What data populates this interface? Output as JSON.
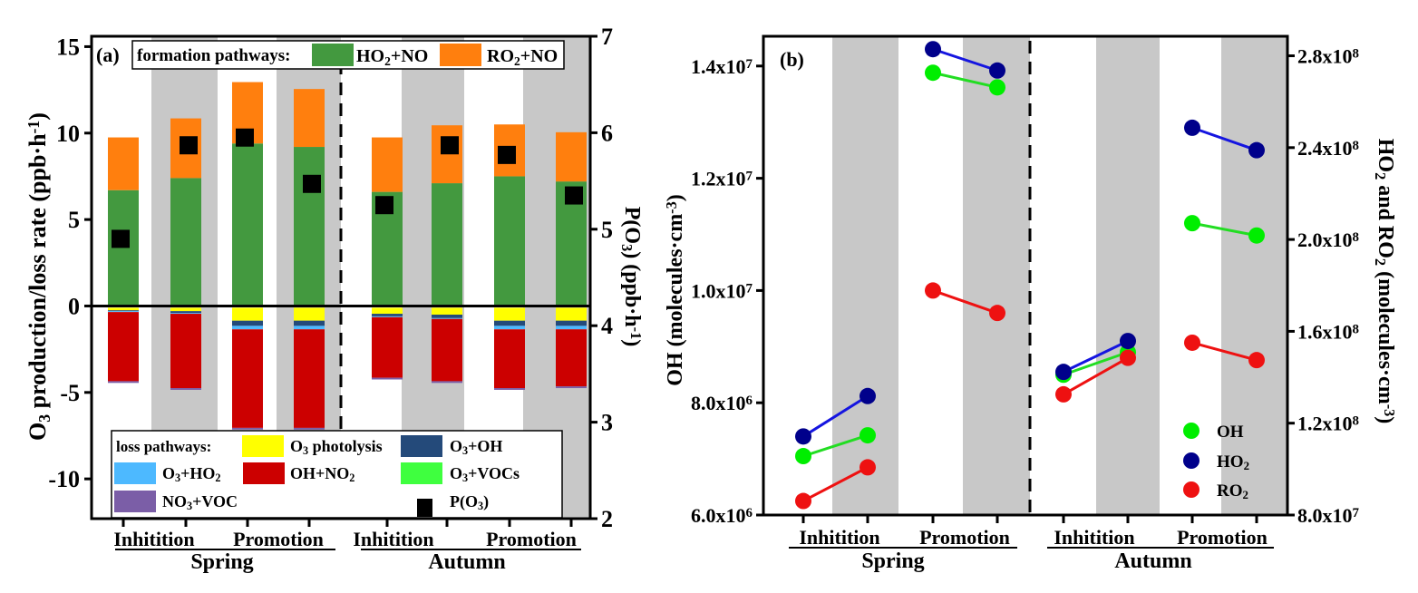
{
  "chart_data": [
    {
      "panel": "(a)",
      "type": "bar",
      "stacked": true,
      "ylabel": "O3 production/loss rate (ppb·h-1)",
      "ylabel_parts": {
        "main": "O",
        "sub": "3",
        "rest": " production/loss rate (ppb·h",
        "sup": "-1",
        "end": ")"
      },
      "y2label_parts": {
        "main": "P(O",
        "sub": "3",
        "rest": ") (ppb·h",
        "sup": "-1",
        "end": ")"
      },
      "ylim": [
        -12.3,
        15.6
      ],
      "yticks": [
        15,
        10,
        5,
        0,
        -5,
        -10
      ],
      "y2lim": [
        2,
        7
      ],
      "y2ticks": [
        7,
        6,
        5,
        4,
        3,
        2
      ],
      "categories": [
        "Spring Inhitition day",
        "Spring Inhitition night",
        "Spring Promotion day",
        "Spring Promotion night",
        "Autumn Inhitition day",
        "Autumn Inhitition night",
        "Autumn Promotion day",
        "Autumn Promotion night"
      ],
      "shaded": [
        false,
        true,
        false,
        true,
        false,
        true,
        false,
        true
      ],
      "group_labels": [
        {
          "label": "Inhitition",
          "season": "Spring"
        },
        {
          "label": "Promotion",
          "season": "Spring"
        },
        {
          "label": "Inhitition",
          "season": "Autumn"
        },
        {
          "label": "Promotion",
          "season": "Autumn"
        }
      ],
      "season_labels": [
        "Spring",
        "Autumn"
      ],
      "formation_legend_title": "formation pathways:",
      "loss_legend_title": "loss pathways:",
      "formation_series": [
        {
          "name": "HO2+NO",
          "label_main": "HO",
          "label_sub": "2",
          "label_rest": "+NO",
          "color": "#43993F",
          "values": [
            6.7,
            7.4,
            9.4,
            9.2,
            6.6,
            7.1,
            7.5,
            7.2
          ]
        },
        {
          "name": "RO2+NO",
          "label_main": "RO",
          "label_sub": "2",
          "label_rest": "+NO",
          "color": "#FF7F0E",
          "values": [
            3.05,
            3.45,
            3.55,
            3.35,
            3.15,
            3.35,
            3.0,
            2.85
          ]
        }
      ],
      "loss_series": [
        {
          "name": "O3 photolysis",
          "label_main": "O",
          "label_sub": "3",
          "label_rest": " photolysis",
          "color": "#FFFF00",
          "values": [
            -0.15,
            -0.2,
            -0.75,
            -0.75,
            -0.35,
            -0.4,
            -0.75,
            -0.75
          ]
        },
        {
          "name": "O3+OH",
          "label_main": "O",
          "label_sub": "3",
          "label_rest": "+OH",
          "color": "#244A7A",
          "values": [
            -0.05,
            -0.1,
            -0.3,
            -0.3,
            -0.15,
            -0.2,
            -0.3,
            -0.3
          ]
        },
        {
          "name": "O3+HO2",
          "label_main": "O",
          "label_sub": "3",
          "label_rest": "+HO",
          "label_sub2": "2",
          "color": "#4DB9FF",
          "values": [
            -0.05,
            -0.05,
            -0.2,
            -0.2,
            -0.05,
            -0.05,
            -0.2,
            -0.2
          ]
        },
        {
          "name": "OH+NO2",
          "label_main": "OH+NO",
          "label_sub": "2",
          "label_rest": "",
          "color": "#CC0000",
          "values": [
            -4.0,
            -4.3,
            -5.7,
            -5.7,
            -3.5,
            -3.6,
            -3.4,
            -3.3
          ]
        },
        {
          "name": "O3+VOCs",
          "label_main": "O",
          "label_sub": "3",
          "label_rest": "+VOCs",
          "color": "#3FFF3F",
          "values": [
            0,
            0,
            0,
            0,
            0,
            0,
            0,
            0
          ]
        },
        {
          "name": "NO3+VOC",
          "label_main": "NO",
          "label_sub": "3",
          "label_rest": "+VOC",
          "color": "#7B5EA7",
          "values": [
            -0.1,
            -0.1,
            -0.1,
            -0.1,
            -0.1,
            -0.1,
            -0.1,
            -0.1
          ]
        }
      ],
      "p_o3": {
        "name": "P(O3)",
        "label_main": "P(O",
        "label_sub": "3",
        "label_rest": ")",
        "axis": "right",
        "color": "#000000",
        "values": [
          4.9,
          5.87,
          5.95,
          5.47,
          5.25,
          5.87,
          5.77,
          5.35
        ]
      }
    },
    {
      "panel": "(b)",
      "type": "line",
      "ylabel_parts": {
        "main": "OH (molecules·cm",
        "sup": "-3",
        "end": ")"
      },
      "y2label_parts": {
        "a": "HO",
        "asub": "2",
        "b": " and RO",
        "bsub": "2",
        "c": " (molecules·cm",
        "sup": "-3",
        "end": ")"
      },
      "ylim": [
        6000000.0,
        14530000.0
      ],
      "yticks": [
        {
          "value": 6000000.0,
          "mant": "6.0x10",
          "exp": "6"
        },
        {
          "value": 8000000.0,
          "mant": "8.0x10",
          "exp": "6"
        },
        {
          "value": 10000000.0,
          "mant": "1.0x10",
          "exp": "7"
        },
        {
          "value": 12000000.0,
          "mant": "1.2x10",
          "exp": "7"
        },
        {
          "value": 14000000.0,
          "mant": "1.4x10",
          "exp": "7"
        }
      ],
      "y2lim": [
        80000000.0,
        288500000.0
      ],
      "y2ticks": [
        {
          "value": 80000000.0,
          "mant": "8.0x10",
          "exp": "7"
        },
        {
          "value": 120000000.0,
          "mant": "1.2x10",
          "exp": "8"
        },
        {
          "value": 160000000.0,
          "mant": "1.6x10",
          "exp": "8"
        },
        {
          "value": 200000000.0,
          "mant": "2.0x10",
          "exp": "8"
        },
        {
          "value": 240000000.0,
          "mant": "2.4x10",
          "exp": "8"
        },
        {
          "value": 280000000.0,
          "mant": "2.8x10",
          "exp": "8"
        }
      ],
      "shaded": [
        false,
        true,
        false,
        true,
        false,
        true,
        false,
        true
      ],
      "group_labels": [
        {
          "label": "Inhitition",
          "season": "Spring"
        },
        {
          "label": "Promotion",
          "season": "Spring"
        },
        {
          "label": "Inhitition",
          "season": "Autumn"
        },
        {
          "label": "Promotion",
          "season": "Autumn"
        }
      ],
      "season_labels": [
        "Spring",
        "Autumn"
      ],
      "legend_position": "bottom-right",
      "series": [
        {
          "name": "OH",
          "label_main": "OH",
          "label_sub": "",
          "axis": "left",
          "color": "#00EE00",
          "line_color": "#22DD22",
          "pairs": [
            [
              7050000.0,
              7420000.0
            ],
            [
              13880000.0,
              13620000.0
            ],
            [
              8500000.0,
              8900000.0
            ],
            [
              11200000.0,
              10980000.0
            ]
          ]
        },
        {
          "name": "HO2",
          "label_main": "HO",
          "label_sub": "2",
          "axis": "left",
          "color": "#00008B",
          "line_color": "#1515E0",
          "pairs": [
            [
              7400000.0,
              8120000.0
            ],
            [
              14300000.0,
              13920000.0
            ],
            [
              8550000.0,
              9100000.0
            ],
            [
              12900000.0,
              12500000.0
            ]
          ]
        },
        {
          "name": "RO2",
          "label_main": "RO",
          "label_sub": "2",
          "axis": "left",
          "color": "#EE1111",
          "line_color": "#EE1111",
          "pairs": [
            [
              6250000.0,
              6850000.0
            ],
            [
              10000000.0,
              9600000.0
            ],
            [
              8150000.0,
              8800000.0
            ],
            [
              9070000.0,
              8760000.0
            ]
          ]
        }
      ]
    }
  ]
}
